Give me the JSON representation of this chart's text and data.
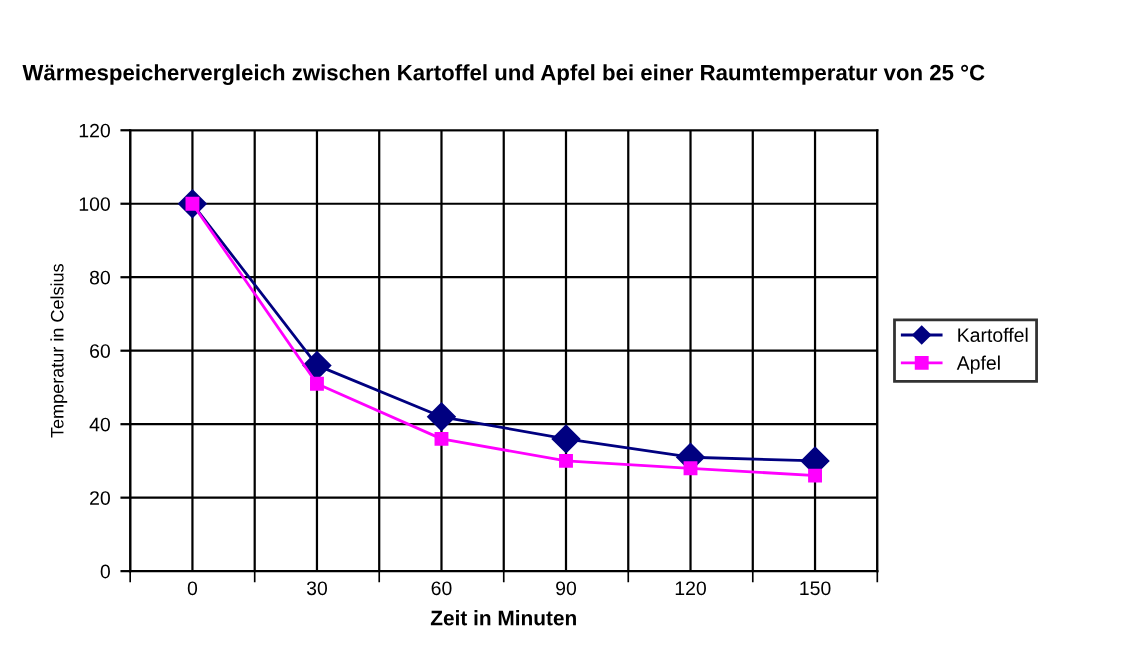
{
  "chart_data": {
    "type": "line",
    "title": "Wärmespeichervergleich zwischen Kartoffel und Apfel bei einer Raumtemperatur von 25 °C",
    "xlabel": "Zeit in Minuten",
    "ylabel": "Temperatur in Celsius",
    "categories": [
      "0",
      "30",
      "60",
      "90",
      "120",
      "150"
    ],
    "series": [
      {
        "name": "Kartoffel",
        "color": "#000080",
        "marker": "diamond",
        "values": [
          100,
          56,
          42,
          36,
          31,
          30
        ]
      },
      {
        "name": "Apfel",
        "color": "#ff00ff",
        "marker": "square",
        "values": [
          100,
          51,
          36,
          30,
          28,
          26
        ]
      }
    ],
    "ylim": [
      0,
      120
    ],
    "yticks": [
      0,
      20,
      40,
      60,
      80,
      100,
      120
    ],
    "grid": true,
    "legend": "right",
    "line_style": "solid"
  }
}
